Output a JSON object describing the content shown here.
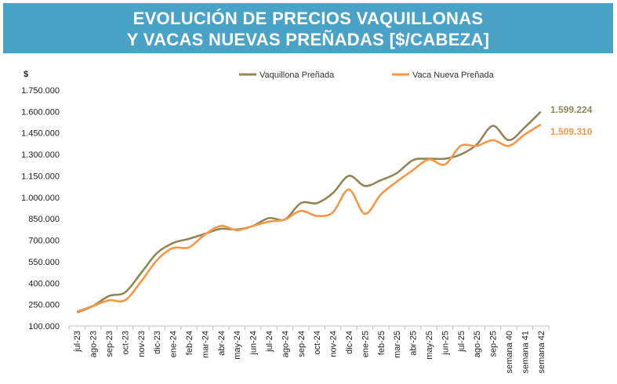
{
  "title_line1": "EVOLUCIÓN DE PRECIOS VAQUILLONAS",
  "title_line2": "Y VACAS NUEVAS PREÑADAS [$/CABEZA]",
  "chart_data": {
    "type": "line",
    "ylabel": "$",
    "ylim": [
      100000,
      1750000
    ],
    "yticks": [
      100000,
      250000,
      400000,
      550000,
      700000,
      850000,
      1000000,
      1150000,
      1300000,
      1450000,
      1600000,
      1750000
    ],
    "ytick_labels": [
      "100.000",
      "250.000",
      "400.000",
      "550.000",
      "700.000",
      "850.000",
      "1.000.000",
      "1.150.000",
      "1.300.000",
      "1.450.000",
      "1.600.000",
      "1.750.000"
    ],
    "categories": [
      "jul-23",
      "ago-23",
      "sep-23",
      "oct-23",
      "nov-23",
      "dic-23",
      "ene-24",
      "feb-24",
      "mar-24",
      "abr-24",
      "may-24",
      "jun-24",
      "jul-24",
      "ago-24",
      "sep-24",
      "oct-24",
      "nov-24",
      "dic-24",
      "ene-25",
      "feb-25",
      "mar-25",
      "abr-25",
      "may-25",
      "jun-25",
      "jul-25",
      "ago-25",
      "sep-25",
      "semana 40",
      "semana 41",
      "semana 42"
    ],
    "legend_position": "top",
    "series": [
      {
        "name": "Vaquillona Preñada",
        "color": "#8f8756",
        "end_label": "1.599.224",
        "values": [
          195000,
          240000,
          310000,
          335000,
          470000,
          610000,
          680000,
          710000,
          745000,
          780000,
          775000,
          800000,
          855000,
          845000,
          960000,
          960000,
          1030000,
          1150000,
          1080000,
          1120000,
          1170000,
          1260000,
          1270000,
          1270000,
          1300000,
          1370000,
          1500000,
          1400000,
          1490000,
          1599224
        ]
      },
      {
        "name": "Vaca Nueva Preñada",
        "color": "#f79646",
        "end_label": "1.509.310",
        "values": [
          200000,
          240000,
          280000,
          280000,
          410000,
          560000,
          645000,
          650000,
          740000,
          800000,
          770000,
          800000,
          830000,
          845000,
          905000,
          870000,
          895000,
          1055000,
          885000,
          1020000,
          1110000,
          1190000,
          1265000,
          1230000,
          1360000,
          1360000,
          1400000,
          1360000,
          1440000,
          1509310
        ]
      }
    ]
  }
}
